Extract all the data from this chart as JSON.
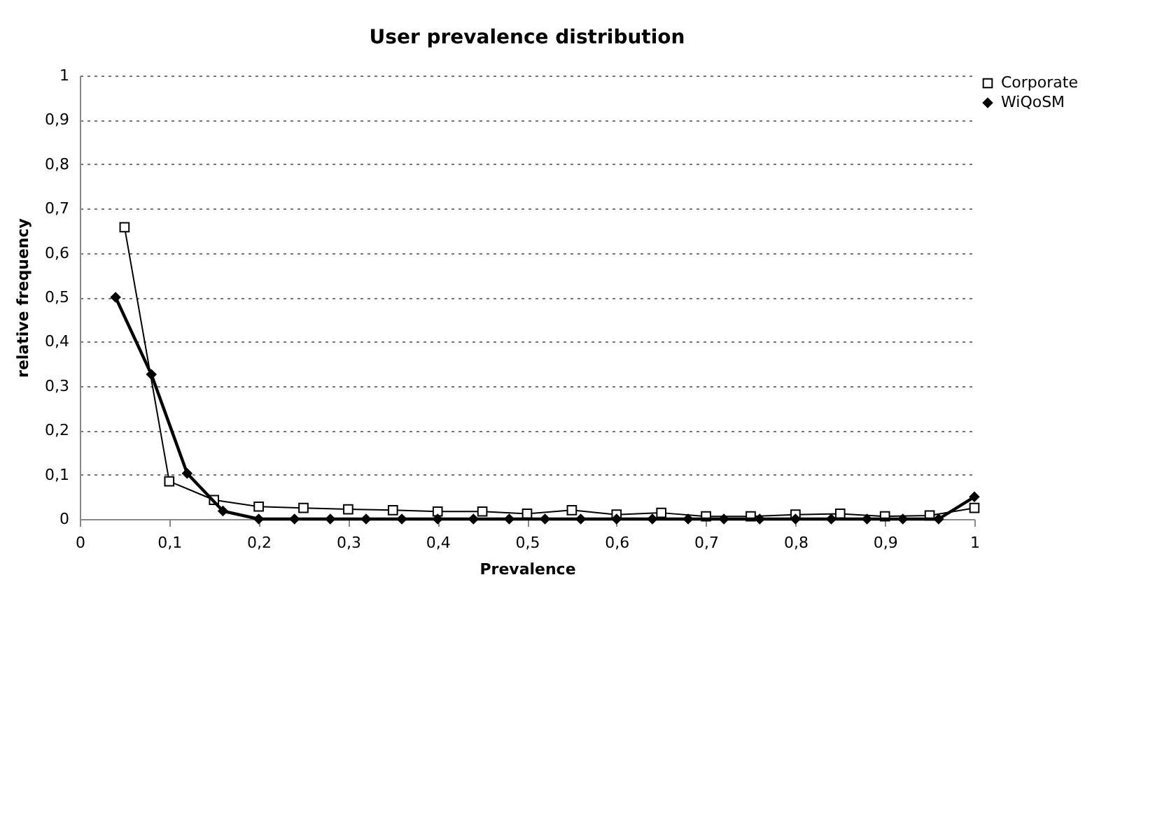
{
  "chart_data": {
    "type": "line",
    "title": "User prevalence distribution",
    "xlabel": "Prevalence",
    "ylabel": "relative frequency",
    "xlim": [
      0,
      1
    ],
    "ylim": [
      0,
      1
    ],
    "xticks": [
      0,
      {
        "value": 0.1,
        "label": "0,1"
      },
      {
        "value": 0.2,
        "label": "0,2"
      },
      {
        "value": 0.3,
        "label": "0,3"
      },
      {
        "value": 0.4,
        "label": "0,4"
      },
      {
        "value": 0.5,
        "label": "0,5"
      },
      {
        "value": 0.6,
        "label": "0,6"
      },
      {
        "value": 0.7,
        "label": "0,7"
      },
      {
        "value": 0.8,
        "label": "0,8"
      },
      {
        "value": 0.9,
        "label": "0,9"
      },
      1
    ],
    "yticks": [
      0,
      {
        "value": 0.1,
        "label": "0,1"
      },
      {
        "value": 0.2,
        "label": "0,2"
      },
      {
        "value": 0.3,
        "label": "0,3"
      },
      {
        "value": 0.4,
        "label": "0,4"
      },
      {
        "value": 0.5,
        "label": "0,5"
      },
      {
        "value": 0.6,
        "label": "0,6"
      },
      {
        "value": 0.7,
        "label": "0,7"
      },
      {
        "value": 0.8,
        "label": "0,8"
      },
      {
        "value": 0.9,
        "label": "0,9"
      },
      1
    ],
    "grid": "y",
    "legend": "right",
    "series": [
      {
        "name": "Corporate",
        "color": "#000000",
        "marker": "square",
        "x": [
          0.05,
          0.1,
          0.15,
          0.2,
          0.25,
          0.3,
          0.35,
          0.4,
          0.45,
          0.5,
          0.55,
          0.6,
          0.65,
          0.7,
          0.75,
          0.8,
          0.85,
          0.9,
          0.95,
          1
        ],
        "values": [
          0.658,
          0.085,
          0.043,
          0.028,
          0.025,
          0.022,
          0.02,
          0.017,
          0.017,
          0.012,
          0.02,
          0.01,
          0.014,
          0.006,
          0.006,
          0.01,
          0.012,
          0.006,
          0.008,
          0.025
        ]
      },
      {
        "name": "WiQoSM",
        "color": "#000000",
        "marker": "diamond",
        "x": [
          0.04,
          0.08,
          0.12,
          0.16,
          0.2,
          0.24,
          0.28,
          0.32,
          0.36,
          0.4,
          0.44,
          0.48,
          0.52,
          0.56,
          0.6,
          0.64,
          0.68,
          0.72,
          0.76,
          0.8,
          0.84,
          0.88,
          0.92,
          0.96,
          1
        ],
        "values": [
          0.5,
          0.326,
          0.103,
          0.018,
          0,
          0,
          0,
          0,
          0,
          0,
          0,
          0,
          0,
          0,
          0,
          0,
          0,
          0,
          0,
          0,
          0,
          0,
          0,
          0,
          0.05
        ]
      }
    ]
  }
}
